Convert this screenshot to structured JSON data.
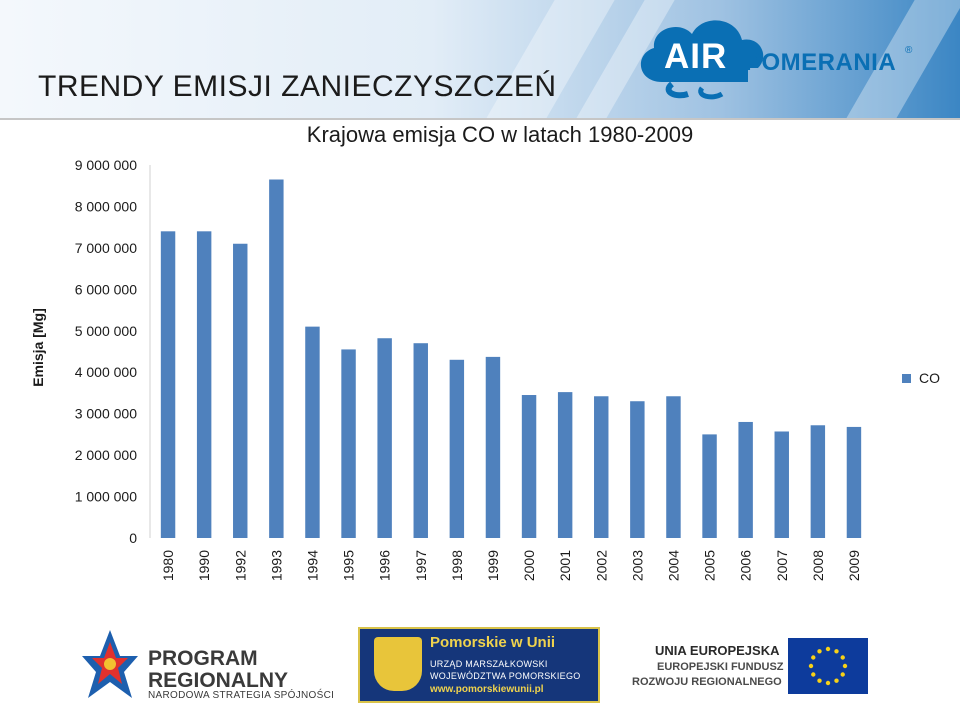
{
  "header": {
    "title": "TRENDY EMISJI ZANIECZYSZCZEŃ",
    "logo": {
      "part1": "AIR",
      "part2": "POMERANIA",
      "mark": "®"
    }
  },
  "chart_data": {
    "type": "bar",
    "title": "Krajowa emisja CO w latach 1980-2009",
    "ylabel": "Emisja [Mg]",
    "xlabel": "",
    "categories": [
      "1980",
      "1990",
      "1992",
      "1993",
      "1994",
      "1995",
      "1996",
      "1997",
      "1998",
      "1999",
      "2000",
      "2001",
      "2002",
      "2003",
      "2004",
      "2005",
      "2006",
      "2007",
      "2008",
      "2009"
    ],
    "series": [
      {
        "name": "CO",
        "color": "#4f81bd",
        "values": [
          7400000,
          7400000,
          7100000,
          8650000,
          5100000,
          4550000,
          4820000,
          4700000,
          4300000,
          4370000,
          3450000,
          3520000,
          3420000,
          3300000,
          3420000,
          2500000,
          2800000,
          2570000,
          2720000,
          2680000
        ]
      }
    ],
    "ylim": [
      0,
      9000000
    ],
    "yticks": [
      0,
      1000000,
      2000000,
      3000000,
      4000000,
      5000000,
      6000000,
      7000000,
      8000000,
      9000000
    ],
    "ytick_labels": [
      "0",
      "1 000 000",
      "2 000 000",
      "3 000 000",
      "4 000 000",
      "5 000 000",
      "6 000 000",
      "7 000 000",
      "8 000 000",
      "9 000 000"
    ],
    "grid": false,
    "legend": {
      "position": "right",
      "label": "CO"
    }
  },
  "footer": {
    "program": {
      "line1": "PROGRAM",
      "line2": "REGIONALNY",
      "sub": "NARODOWA STRATEGIA SPÓJNOŚCI"
    },
    "pomorskie": {
      "title": "Pomorskie w Unii",
      "line1": "URZĄD MARSZAŁKOWSKI",
      "line2": "WOJEWÓDZTWA POMORSKIEGO",
      "url": "www.pomorskiewunii.pl"
    },
    "eu": {
      "line1": "UNIA EUROPEJSKA",
      "line2": "EUROPEJSKI FUNDUSZ",
      "line3": "ROZWOJU REGIONALNEGO"
    }
  }
}
